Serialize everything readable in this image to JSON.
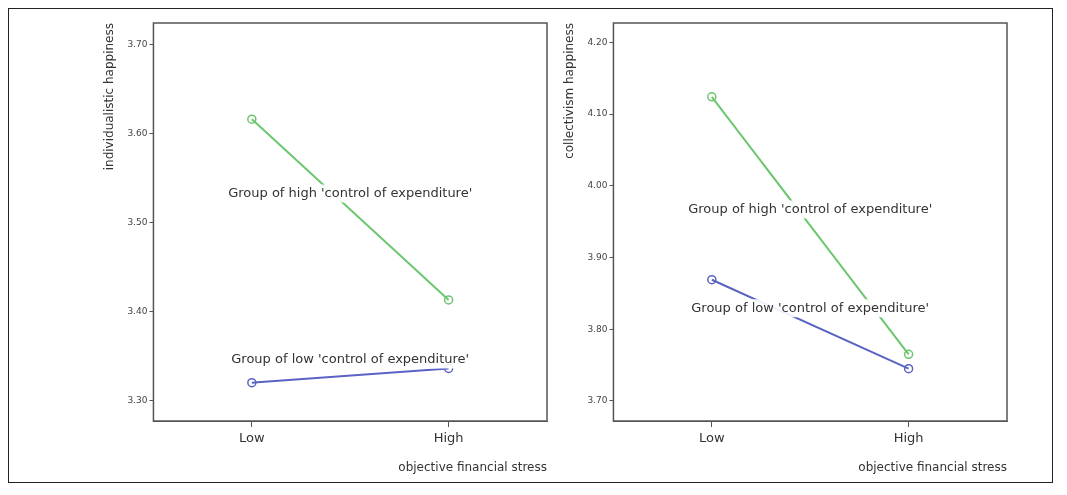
{
  "chart_data": [
    {
      "type": "line",
      "categories": [
        "Low",
        "High"
      ],
      "xlabel": "objective financial stress",
      "ylabel": "individualistic happiness",
      "ylim": [
        3.277,
        3.724
      ],
      "yticks": [
        {
          "value": 3.3,
          "label": "3.30"
        },
        {
          "value": 3.4,
          "label": "3.40"
        },
        {
          "value": 3.5,
          "label": "3.50"
        },
        {
          "value": 3.6,
          "label": "3.60"
        },
        {
          "value": 3.7,
          "label": "3.70"
        }
      ],
      "grid": false,
      "legend": false,
      "marker": "circle",
      "series": [
        {
          "name": "Group of high 'control of expenditure'",
          "color": "#6cc66e",
          "values": [
            3.616,
            3.413
          ]
        },
        {
          "name": "Group of low 'control of expenditure'",
          "color": "#5a63c4",
          "values": [
            3.32,
            3.336
          ]
        }
      ]
    },
    {
      "type": "line",
      "categories": [
        "Low",
        "High"
      ],
      "xlabel": "objective financial stress",
      "ylabel": "collectivism happiness",
      "ylim": [
        3.672,
        4.227
      ],
      "yticks": [
        {
          "value": 3.7,
          "label": "3.70"
        },
        {
          "value": 3.8,
          "label": "3.80"
        },
        {
          "value": 3.9,
          "label": "3.90"
        },
        {
          "value": 4.0,
          "label": "4.00"
        },
        {
          "value": 4.1,
          "label": "4.10"
        },
        {
          "value": 4.2,
          "label": "4.20"
        }
      ],
      "grid": false,
      "legend": false,
      "marker": "circle",
      "series": [
        {
          "name": "Group of high 'control of expenditure'",
          "color": "#6cc66e",
          "values": [
            4.124,
            3.765
          ]
        },
        {
          "name": "Group of low 'control of expenditure'",
          "color": "#5a63c4",
          "values": [
            3.869,
            3.745
          ]
        }
      ]
    }
  ]
}
